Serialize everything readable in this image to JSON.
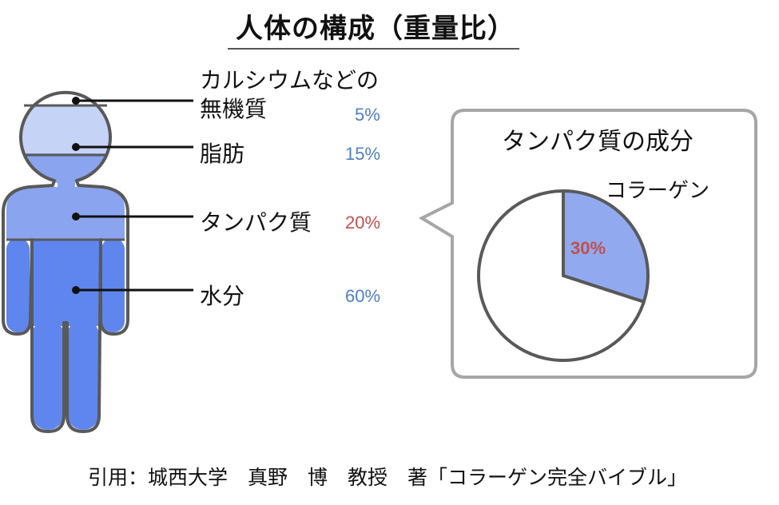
{
  "title": "人体の構成（重量比）",
  "components": [
    {
      "label_line1": "カルシウムなどの",
      "label_line2": "無機質",
      "percent": "5%",
      "value": 5
    },
    {
      "label": "脂肪",
      "percent": "15%",
      "value": 15
    },
    {
      "label": "タンパク質",
      "percent": "20%",
      "value": 20
    },
    {
      "label": "水分",
      "percent": "60%",
      "value": 60
    }
  ],
  "callout": {
    "title": "タンパク質の成分",
    "slice_label": "コラーゲン",
    "slice_percent": "30%"
  },
  "chart_data": {
    "type": "pie",
    "title": "タンパク質の成分",
    "categories": [
      "コラーゲン",
      ""
    ],
    "values": [
      30,
      70
    ],
    "colors": [
      "#91a9ee",
      "#ffffff"
    ]
  },
  "colors": {
    "inorganic": "#ffffff",
    "fat": "#c5d3f7",
    "protein": "#8aa4ef",
    "water": "#5f86ee",
    "outline": "#595959",
    "blue_text": "#4f7fc0",
    "red_text": "#c0504d"
  },
  "source": "引用：城西大学　真野　博　教授　著「コラーゲン完全バイブル」"
}
